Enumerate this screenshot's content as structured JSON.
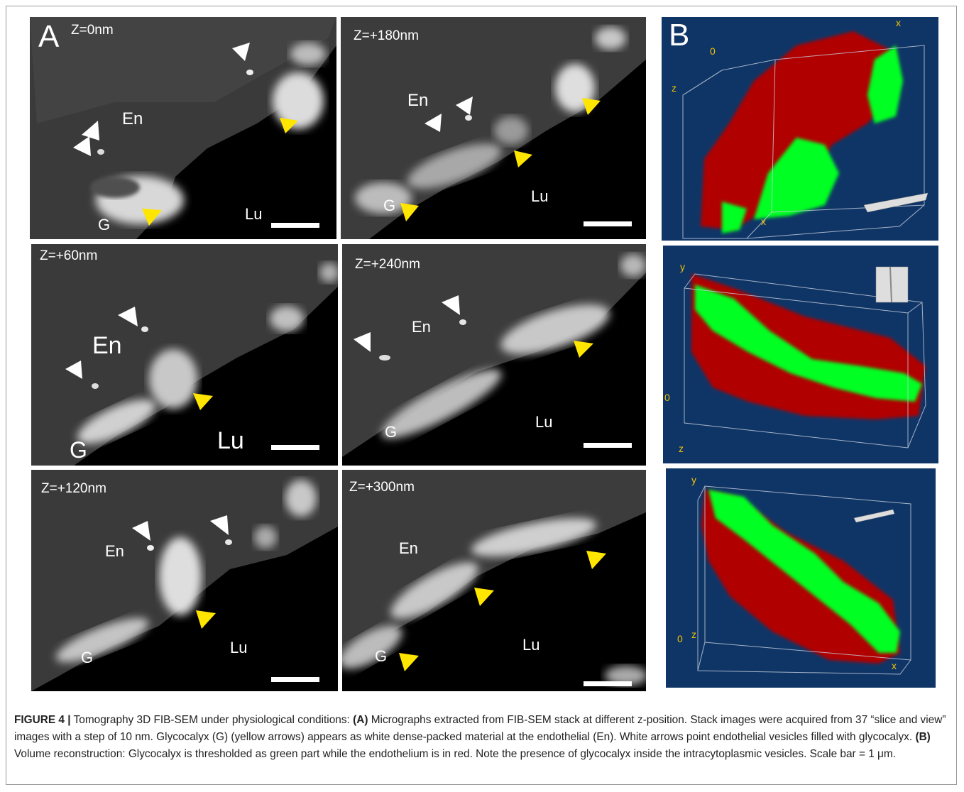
{
  "panel_a": {
    "letter": "A",
    "micrographs": [
      {
        "z": "Z=0nm",
        "labels": {
          "en": "En",
          "lu": "Lu",
          "g": "G"
        }
      },
      {
        "z": "Z=+180nm",
        "labels": {
          "en": "En",
          "lu": "Lu",
          "g": "G"
        }
      },
      {
        "z": "Z=+60nm",
        "labels": {
          "en": "En",
          "lu": "Lu",
          "g": "G"
        }
      },
      {
        "z": "Z=+240nm",
        "labels": {
          "en": "En",
          "lu": "Lu",
          "g": "G"
        }
      },
      {
        "z": "Z=+120nm",
        "labels": {
          "en": "En",
          "lu": "Lu",
          "g": "G"
        }
      },
      {
        "z": "Z=+300nm",
        "labels": {
          "en": "En",
          "lu": "Lu",
          "g": "G"
        }
      }
    ]
  },
  "panel_b": {
    "letter": "B",
    "views": [
      {
        "axes": {
          "x_top": "x",
          "zero": "0",
          "z": "z",
          "x_bottom": "x"
        }
      },
      {
        "axes": {
          "y": "y",
          "zero": "0",
          "z": "z"
        }
      },
      {
        "axes": {
          "y": "y",
          "zero": "0",
          "z": "z",
          "x": "x"
        }
      }
    ]
  },
  "colors": {
    "arrow_glycocalyx": "#ffe600",
    "arrow_vesicle": "#ffffff",
    "recon_background": "#0f3566",
    "recon_glycocalyx": "#00ff22",
    "recon_endothelium": "#b00000",
    "axis_label": "#f2c200"
  },
  "caption": {
    "figure_label": "FIGURE 4 |",
    "intro": " Tomography 3D FIB-SEM under physiological conditions: ",
    "a_label": "(A)",
    "a_text": " Micrographs extracted from FIB-SEM stack at different z-position. Stack images were acquired from 37 “slice and view” images with a step of 10 nm. Glycocalyx (G) (yellow arrows) appears as white dense-packed material at the endothelial (En). White arrows point endothelial vesicles filled with glycocalyx. ",
    "b_label": "(B)",
    "b_text": " Volume reconstruction: Glycocalyx is thresholded as green part while the endothelium is in red. Note the presence of glycocalyx inside the intracytoplasmic vesicles. Scale bar = 1 μm."
  }
}
